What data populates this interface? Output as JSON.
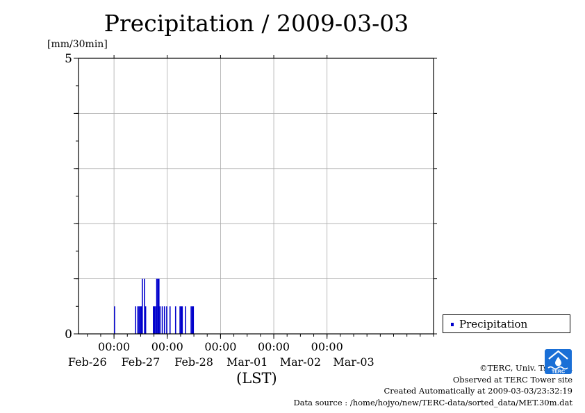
{
  "chart_data": {
    "type": "bar",
    "title": "Precipitation / 2009-03-03",
    "y_unit": "[mm/30min]",
    "xlabel": "(LST)",
    "ylim": [
      0,
      5
    ],
    "ytick_labels": [
      "0",
      "5"
    ],
    "xlim": [
      "2009-02-25T08:00",
      "2009-03-03T24:00"
    ],
    "xtick_times": [
      "00:00",
      "00:00",
      "00:00",
      "00:00",
      "00:00"
    ],
    "xtick_dates": [
      "Feb-26",
      "Feb-27",
      "Feb-28",
      "Mar-01",
      "Mar-02",
      "Mar-03"
    ],
    "grid": true,
    "legend_position": "right",
    "series": [
      {
        "name": "Precipitation",
        "color": "#0000cc",
        "points": [
          [
            "2009-02-26T00:00",
            0.5
          ],
          [
            "2009-02-26T09:30",
            0.5
          ],
          [
            "2009-02-26T10:30",
            0.5
          ],
          [
            "2009-02-26T11:00",
            0.5
          ],
          [
            "2009-02-26T11:30",
            0.5
          ],
          [
            "2009-02-26T12:00",
            0.5
          ],
          [
            "2009-02-26T12:30",
            1.0
          ],
          [
            "2009-02-26T13:30",
            1.0
          ],
          [
            "2009-02-26T14:00",
            0.5
          ],
          [
            "2009-02-26T17:30",
            0.5
          ],
          [
            "2009-02-26T18:00",
            0.5
          ],
          [
            "2009-02-26T18:30",
            0.5
          ],
          [
            "2009-02-26T19:00",
            1.0
          ],
          [
            "2009-02-26T19:30",
            1.0
          ],
          [
            "2009-02-26T20:00",
            1.0
          ],
          [
            "2009-02-26T20:30",
            0.5
          ],
          [
            "2009-02-26T21:30",
            0.5
          ],
          [
            "2009-02-26T22:30",
            0.5
          ],
          [
            "2009-02-26T23:30",
            0.5
          ],
          [
            "2009-02-27T01:00",
            0.5
          ],
          [
            "2009-02-27T03:30",
            0.5
          ],
          [
            "2009-02-27T05:30",
            0.5
          ],
          [
            "2009-02-27T06:00",
            0.5
          ],
          [
            "2009-02-27T06:30",
            0.5
          ],
          [
            "2009-02-27T08:00",
            0.5
          ],
          [
            "2009-02-27T10:30",
            0.5
          ],
          [
            "2009-02-27T11:00",
            0.5
          ],
          [
            "2009-02-27T11:30",
            0.5
          ]
        ]
      }
    ]
  },
  "legend": {
    "label": "Precipitation",
    "color": "#0000cc"
  },
  "credits": {
    "line1": "©TERC, Univ. Tsukuba",
    "line2": "Observed at TERC Tower site",
    "line3": "Created Automatically at 2009-03-03/23:32:19",
    "line4": "Data source : /home/hojyo/new/TERC-data/sorted_data/MET.30m.dat"
  },
  "logo": {
    "text": "TERC",
    "color": "#1a6fd6"
  }
}
